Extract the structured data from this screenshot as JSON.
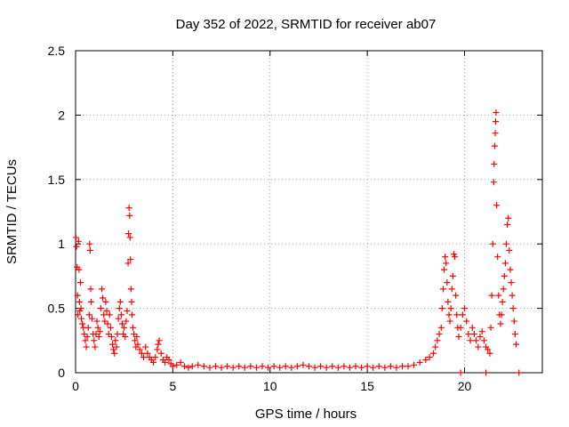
{
  "chart_data": {
    "type": "scatter",
    "title": "Day 352 of 2022, SRMTID for receiver ab07",
    "xlabel": "GPS time / hours",
    "ylabel": "SRMTID / TECUs",
    "xlim": [
      0,
      24
    ],
    "ylim": [
      0,
      2.5
    ],
    "xticks": [
      0,
      5,
      10,
      15,
      20
    ],
    "yticks": [
      0,
      0.5,
      1,
      1.5,
      2,
      2.5
    ],
    "xtick_labels": [
      "0",
      "5",
      "10",
      "15",
      "20"
    ],
    "ytick_labels": [
      "0",
      "0.5",
      "1",
      "1.5",
      "2",
      "2.5"
    ],
    "grid": true,
    "marker": "plus",
    "color": "#ff0000",
    "series": [
      {
        "name": "SRMTID",
        "points": [
          [
            0.02,
            1.05
          ],
          [
            0.05,
            0.98
          ],
          [
            0.08,
            0.82
          ],
          [
            0.1,
            0.6
          ],
          [
            0.12,
            0.45
          ],
          [
            0.15,
            1.02
          ],
          [
            0.18,
            0.8
          ],
          [
            0.2,
            0.55
          ],
          [
            0.22,
            0.48
          ],
          [
            0.25,
            0.7
          ],
          [
            0.28,
            0.5
          ],
          [
            0.3,
            0.42
          ],
          [
            0.35,
            0.38
          ],
          [
            0.4,
            0.35
          ],
          [
            0.45,
            0.3
          ],
          [
            0.5,
            0.25
          ],
          [
            0.55,
            0.2
          ],
          [
            0.6,
            0.28
          ],
          [
            0.65,
            0.35
          ],
          [
            0.7,
            0.45
          ],
          [
            0.72,
            1.0
          ],
          [
            0.75,
            0.95
          ],
          [
            0.78,
            0.65
          ],
          [
            0.8,
            0.55
          ],
          [
            0.85,
            0.42
          ],
          [
            0.9,
            0.3
          ],
          [
            0.95,
            0.25
          ],
          [
            1.0,
            0.2
          ],
          [
            1.05,
            0.3
          ],
          [
            1.1,
            0.4
          ],
          [
            1.15,
            0.35
          ],
          [
            1.2,
            0.28
          ],
          [
            1.25,
            0.32
          ],
          [
            1.3,
            0.5
          ],
          [
            1.35,
            0.65
          ],
          [
            1.4,
            0.58
          ],
          [
            1.45,
            0.45
          ],
          [
            1.5,
            0.4
          ],
          [
            1.55,
            0.55
          ],
          [
            1.6,
            0.48
          ],
          [
            1.65,
            0.38
          ],
          [
            1.7,
            0.3
          ],
          [
            1.75,
            0.45
          ],
          [
            1.8,
            0.35
          ],
          [
            1.85,
            0.28
          ],
          [
            1.9,
            0.22
          ],
          [
            1.95,
            0.18
          ],
          [
            2.0,
            0.15
          ],
          [
            2.05,
            0.25
          ],
          [
            2.1,
            0.2
          ],
          [
            2.15,
            0.3
          ],
          [
            2.2,
            0.42
          ],
          [
            2.25,
            0.5
          ],
          [
            2.3,
            0.55
          ],
          [
            2.35,
            0.45
          ],
          [
            2.4,
            0.38
          ],
          [
            2.45,
            0.3
          ],
          [
            2.5,
            0.35
          ],
          [
            2.55,
            0.28
          ],
          [
            2.6,
            0.4
          ],
          [
            2.65,
            0.48
          ],
          [
            2.7,
            0.85
          ],
          [
            2.72,
            1.08
          ],
          [
            2.75,
            1.28
          ],
          [
            2.78,
            1.22
          ],
          [
            2.8,
            1.05
          ],
          [
            2.82,
            0.88
          ],
          [
            2.85,
            0.65
          ],
          [
            2.88,
            0.55
          ],
          [
            2.9,
            0.45
          ],
          [
            2.95,
            0.35
          ],
          [
            3.0,
            0.3
          ],
          [
            3.05,
            0.25
          ],
          [
            3.1,
            0.2
          ],
          [
            3.15,
            0.28
          ],
          [
            3.2,
            0.22
          ],
          [
            3.3,
            0.18
          ],
          [
            3.4,
            0.15
          ],
          [
            3.5,
            0.12
          ],
          [
            3.6,
            0.2
          ],
          [
            3.7,
            0.15
          ],
          [
            3.8,
            0.12
          ],
          [
            3.9,
            0.1
          ],
          [
            4.0,
            0.08
          ],
          [
            4.1,
            0.12
          ],
          [
            4.2,
            0.18
          ],
          [
            4.25,
            0.22
          ],
          [
            4.3,
            0.25
          ],
          [
            4.4,
            0.15
          ],
          [
            4.5,
            0.1
          ],
          [
            4.6,
            0.08
          ],
          [
            4.7,
            0.12
          ],
          [
            4.8,
            0.1
          ],
          [
            4.9,
            0.07
          ],
          [
            5.0,
            0.05
          ],
          [
            5.2,
            0.06
          ],
          [
            5.4,
            0.08
          ],
          [
            5.6,
            0.05
          ],
          [
            5.8,
            0.04
          ],
          [
            6.0,
            0.05
          ],
          [
            6.3,
            0.06
          ],
          [
            6.6,
            0.05
          ],
          [
            6.9,
            0.04
          ],
          [
            7.2,
            0.05
          ],
          [
            7.5,
            0.04
          ],
          [
            7.8,
            0.05
          ],
          [
            8.1,
            0.04
          ],
          [
            8.4,
            0.05
          ],
          [
            8.7,
            0.04
          ],
          [
            9.0,
            0.05
          ],
          [
            9.3,
            0.04
          ],
          [
            9.6,
            0.05
          ],
          [
            9.9,
            0.04
          ],
          [
            10.2,
            0.05
          ],
          [
            10.5,
            0.04
          ],
          [
            10.8,
            0.05
          ],
          [
            11.1,
            0.04
          ],
          [
            11.4,
            0.05
          ],
          [
            11.7,
            0.06
          ],
          [
            12.0,
            0.05
          ],
          [
            12.3,
            0.04
          ],
          [
            12.6,
            0.05
          ],
          [
            12.9,
            0.04
          ],
          [
            13.2,
            0.05
          ],
          [
            13.5,
            0.04
          ],
          [
            13.8,
            0.05
          ],
          [
            14.1,
            0.04
          ],
          [
            14.4,
            0.05
          ],
          [
            14.7,
            0.04
          ],
          [
            15.0,
            0.05
          ],
          [
            15.3,
            0.04
          ],
          [
            15.6,
            0.05
          ],
          [
            15.9,
            0.04
          ],
          [
            16.2,
            0.05
          ],
          [
            16.5,
            0.04
          ],
          [
            16.8,
            0.05
          ],
          [
            17.1,
            0.05
          ],
          [
            17.4,
            0.06
          ],
          [
            17.7,
            0.08
          ],
          [
            18.0,
            0.1
          ],
          [
            18.2,
            0.12
          ],
          [
            18.4,
            0.15
          ],
          [
            18.5,
            0.2
          ],
          [
            18.6,
            0.25
          ],
          [
            18.7,
            0.3
          ],
          [
            18.8,
            0.35
          ],
          [
            18.85,
            0.5
          ],
          [
            18.9,
            0.65
          ],
          [
            18.95,
            0.8
          ],
          [
            19.0,
            0.9
          ],
          [
            19.05,
            0.85
          ],
          [
            19.1,
            0.7
          ],
          [
            19.15,
            0.55
          ],
          [
            19.2,
            0.45
          ],
          [
            19.25,
            0.4
          ],
          [
            19.3,
            0.5
          ],
          [
            19.35,
            0.65
          ],
          [
            19.4,
            0.75
          ],
          [
            19.45,
            0.92
          ],
          [
            19.5,
            0.9
          ],
          [
            19.55,
            0.6
          ],
          [
            19.6,
            0.45
          ],
          [
            19.65,
            0.35
          ],
          [
            19.7,
            0.28
          ],
          [
            19.8,
            0.35
          ],
          [
            19.9,
            0.45
          ],
          [
            20.0,
            0.5
          ],
          [
            20.1,
            0.4
          ],
          [
            20.2,
            0.3
          ],
          [
            20.3,
            0.25
          ],
          [
            20.4,
            0.35
          ],
          [
            20.5,
            0.3
          ],
          [
            20.6,
            0.25
          ],
          [
            20.7,
            0.2
          ],
          [
            20.8,
            0.28
          ],
          [
            20.9,
            0.32
          ],
          [
            21.0,
            0.25
          ],
          [
            21.1,
            0.2
          ],
          [
            21.2,
            0.18
          ],
          [
            21.3,
            0.15
          ],
          [
            21.35,
            0.35
          ],
          [
            21.4,
            0.6
          ],
          [
            21.45,
            1.0
          ],
          [
            21.5,
            1.48
          ],
          [
            21.52,
            1.62
          ],
          [
            21.55,
            1.76
          ],
          [
            21.58,
            1.86
          ],
          [
            21.6,
            1.95
          ],
          [
            21.62,
            2.02
          ],
          [
            21.65,
            1.3
          ],
          [
            21.7,
            0.9
          ],
          [
            21.75,
            0.6
          ],
          [
            21.8,
            0.45
          ],
          [
            21.85,
            0.38
          ],
          [
            21.9,
            0.45
          ],
          [
            21.95,
            0.55
          ],
          [
            22.0,
            0.65
          ],
          [
            22.05,
            0.75
          ],
          [
            22.1,
            0.85
          ],
          [
            22.15,
            1.0
          ],
          [
            22.2,
            1.15
          ],
          [
            22.25,
            1.2
          ],
          [
            22.3,
            0.95
          ],
          [
            22.35,
            0.8
          ],
          [
            22.4,
            0.7
          ],
          [
            22.45,
            0.6
          ],
          [
            22.5,
            0.5
          ],
          [
            22.55,
            0.4
          ],
          [
            22.6,
            0.3
          ],
          [
            22.65,
            0.22
          ],
          [
            19.8,
            0.0
          ],
          [
            21.1,
            0.0
          ],
          [
            22.8,
            0.0
          ]
        ]
      }
    ]
  }
}
